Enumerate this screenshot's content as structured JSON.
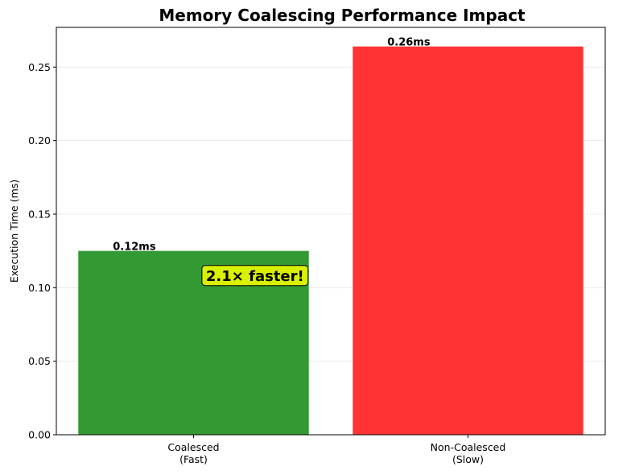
{
  "chart_data": {
    "type": "bar",
    "title": "Memory Coalescing Performance Impact",
    "xlabel": "",
    "ylabel": "Execution Time (ms)",
    "categories": [
      "Coalesced\n(Fast)",
      "Non-Coalesced\n(Slow)"
    ],
    "values": [
      0.125,
      0.264
    ],
    "data_labels": [
      "0.12ms",
      "0.26ms"
    ],
    "bar_colors": [
      "#339933",
      "#ff3333"
    ],
    "ylim": [
      0,
      0.277
    ],
    "yticks": [
      0.0,
      0.05,
      0.1,
      0.15,
      0.2,
      0.25
    ],
    "ytick_labels": [
      "0.00",
      "0.05",
      "0.10",
      "0.15",
      "0.20",
      "0.25"
    ],
    "grid": "y",
    "annotation": {
      "text": "2.1× faster!",
      "anchor_category": 0,
      "y": 0.108,
      "box_color": "#d9f000"
    }
  }
}
